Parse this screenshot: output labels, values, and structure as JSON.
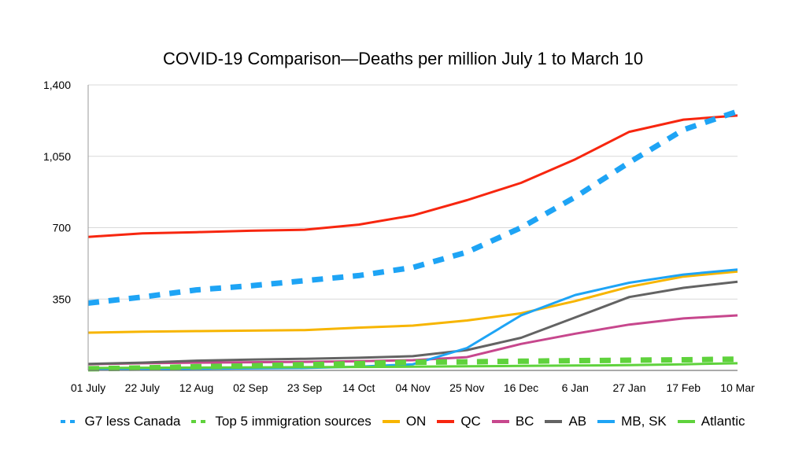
{
  "chart_data": {
    "type": "line",
    "title": "COVID-19 Comparison—Deaths per million July 1 to March 10",
    "xlabel": "",
    "ylabel": "",
    "ylim": [
      0,
      1400
    ],
    "yticks": [
      "1,400",
      "1,050",
      "700",
      "350"
    ],
    "ytick_values": [
      1400,
      1050,
      700,
      350
    ],
    "grid": true,
    "legend_position": "bottom",
    "x": [
      "01 July",
      "22 July",
      "12 Aug",
      "02 Sep",
      "23 Sep",
      "14 Oct",
      "04 Nov",
      "25 Nov",
      "16 Dec",
      "6 Jan",
      "27 Jan",
      "17 Feb",
      "10 Mar"
    ],
    "series": [
      {
        "name": "G7 less Canada",
        "color": "#1ea4f5",
        "style": "dashed",
        "values": [
          330,
          360,
          395,
          415,
          440,
          465,
          505,
          580,
          700,
          850,
          1020,
          1180,
          1270
        ]
      },
      {
        "name": "Top 5 immigration sources",
        "color": "#5fd23c",
        "style": "dashed",
        "values": [
          8,
          12,
          18,
          22,
          28,
          33,
          40,
          42,
          45,
          48,
          50,
          52,
          55
        ]
      },
      {
        "name": "ON",
        "color": "#f7b500",
        "style": "solid",
        "values": [
          185,
          190,
          193,
          195,
          198,
          210,
          220,
          245,
          280,
          340,
          410,
          460,
          485
        ]
      },
      {
        "name": "QC",
        "color": "#f7260f",
        "style": "solid",
        "values": [
          655,
          672,
          678,
          685,
          690,
          715,
          760,
          835,
          920,
          1035,
          1170,
          1230,
          1250
        ]
      },
      {
        "name": "BC",
        "color": "#c7478d",
        "style": "solid",
        "values": [
          30,
          35,
          38,
          40,
          42,
          45,
          50,
          65,
          130,
          180,
          225,
          255,
          270
        ]
      },
      {
        "name": "AB",
        "color": "#636363",
        "style": "solid",
        "values": [
          32,
          38,
          48,
          53,
          57,
          62,
          70,
          100,
          160,
          260,
          360,
          405,
          435
        ]
      },
      {
        "name": "MB, SK",
        "color": "#1ea4f5",
        "style": "solid",
        "values": [
          5,
          6,
          8,
          10,
          12,
          18,
          30,
          110,
          270,
          370,
          430,
          470,
          495
        ]
      },
      {
        "name": "Atlantic",
        "color": "#5fd23c",
        "style": "solid",
        "values": [
          12,
          13,
          14,
          15,
          16,
          17,
          18,
          20,
          22,
          24,
          26,
          30,
          35
        ]
      }
    ]
  }
}
